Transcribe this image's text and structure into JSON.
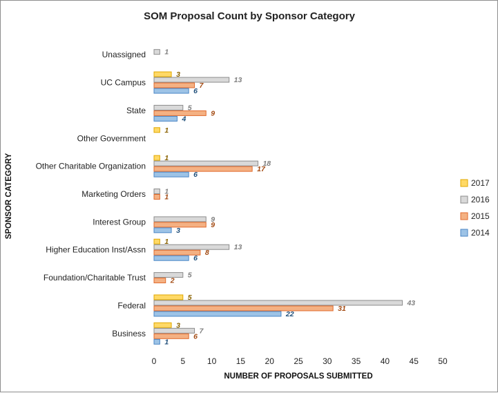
{
  "chart_data": {
    "type": "bar",
    "orientation": "horizontal",
    "title": "SOM Proposal Count by Sponsor Category",
    "xlabel": "NUMBER OF PROPOSALS SUBMITTED",
    "ylabel": "SPONSOR CATEGORY",
    "xlim": [
      0,
      50
    ],
    "xticks": [
      0,
      5,
      10,
      15,
      20,
      25,
      30,
      35,
      40,
      45,
      50
    ],
    "grid": false,
    "legend_position": "right",
    "categories": [
      "Unassigned",
      "UC Campus",
      "State",
      "Other Government",
      "Other Charitable Organization",
      "Marketing Orders",
      "Interest Group",
      "Higher Education Inst/Assn",
      "Foundation/Charitable Trust",
      "Federal",
      "Business"
    ],
    "series": [
      {
        "name": "2017",
        "color": "#ffd966",
        "border": "#e0a800",
        "label_color": "#8a6200",
        "values": [
          null,
          3,
          null,
          1,
          1,
          null,
          null,
          1,
          null,
          5,
          3
        ]
      },
      {
        "name": "2016",
        "color": "#d9d9d9",
        "border": "#8c8c8c",
        "label_color": "#7f7f7f",
        "values": [
          1,
          13,
          5,
          null,
          18,
          1,
          9,
          13,
          5,
          43,
          7
        ]
      },
      {
        "name": "2015",
        "color": "#f4b183",
        "border": "#e06a2c",
        "label_color": "#a34a12",
        "values": [
          null,
          7,
          9,
          null,
          17,
          1,
          9,
          8,
          2,
          31,
          6
        ]
      },
      {
        "name": "2014",
        "color": "#9dc3e6",
        "border": "#4a86c5",
        "label_color": "#1f4e79",
        "values": [
          null,
          6,
          4,
          null,
          6,
          null,
          3,
          6,
          null,
          22,
          1
        ]
      }
    ]
  }
}
